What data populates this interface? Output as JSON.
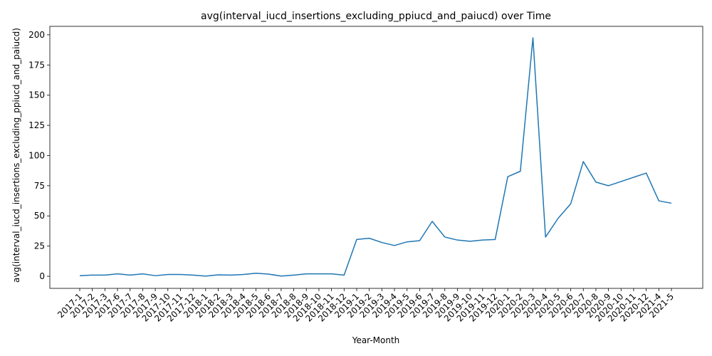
{
  "chart_data": {
    "type": "line",
    "title": "avg(interval_iucd_insertions_excluding_ppiucd_and_paiucd) over Time",
    "xlabel": "Year-Month",
    "ylabel": "avg(interval_iucd_insertions_excluding_ppiucd_and_paiucd)",
    "ylim": [
      -10,
      207
    ],
    "yticks": [
      0,
      25,
      50,
      75,
      100,
      125,
      150,
      175,
      200
    ],
    "grid": false,
    "line_color": "#1f77b4",
    "categories": [
      "2017-1",
      "2017-2",
      "2017-3",
      "2017-6",
      "2017-7",
      "2017-8",
      "2017-9",
      "2017-10",
      "2017-11",
      "2017-12",
      "2018-1",
      "2018-2",
      "2018-3",
      "2018-4",
      "2018-5",
      "2018-6",
      "2018-7",
      "2018-8",
      "2018-9",
      "2018-10",
      "2018-11",
      "2018-12",
      "2019-1",
      "2019-2",
      "2019-3",
      "2019-4",
      "2019-5",
      "2019-6",
      "2019-7",
      "2019-8",
      "2019-9",
      "2019-10",
      "2019-11",
      "2019-12",
      "2020-1",
      "2020-2",
      "2020-3",
      "2020-4",
      "2020-5",
      "2020-6",
      "2020-7",
      "2020-8",
      "2020-9",
      "2020-10",
      "2020-11",
      "2020-12",
      "2021-4",
      "2021-5"
    ],
    "values": [
      0.5,
      1,
      1,
      2,
      1,
      2,
      0.5,
      1.5,
      1.5,
      1,
      0.2,
      1.2,
      1,
      1.5,
      2.5,
      1.8,
      0.2,
      1,
      2,
      2,
      2,
      1,
      30.5,
      31.5,
      28,
      25.5,
      28.5,
      29.5,
      45.5,
      32.5,
      30,
      29,
      30,
      30.5,
      82.5,
      87,
      197.5,
      32.5,
      48,
      60,
      95,
      78,
      75,
      78.5,
      82,
      85.5,
      62.5,
      60.5
    ]
  }
}
